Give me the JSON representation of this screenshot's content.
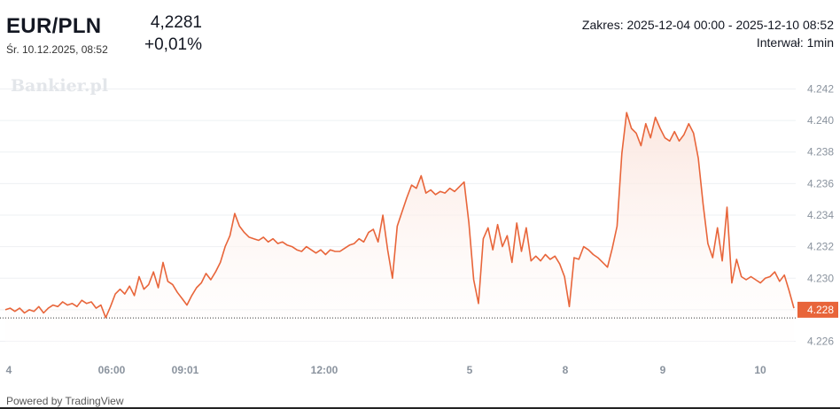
{
  "header": {
    "symbol": "EUR/PLN",
    "date": "Śr. 10.12.2025, 08:52",
    "price": "4,2281",
    "change": "+0,01%",
    "range": "Zakres: 2025-12-04 00:00 - 2025-12-10 08:52",
    "interval": "Interwał: 1min"
  },
  "watermark": "Bankier.pl",
  "footer": "Powered by TradingView",
  "colors": {
    "line": "#e8653a",
    "area_top": "#fbe4dc",
    "price_label_bg": "#e8653a",
    "grid": "#eef0f3",
    "axis_text": "#8a939e"
  },
  "chart_data": {
    "type": "area",
    "title": "EUR/PLN",
    "xlabel": "",
    "ylabel": "",
    "ylim": [
      4.2253,
      4.2427
    ],
    "grid": true,
    "y_ticks": [
      "4.226",
      "4.228",
      "4.230",
      "4.232",
      "4.234",
      "4.236",
      "4.238",
      "4.240",
      "4.242"
    ],
    "x_ticks": [
      "4",
      "06:00",
      "09:01",
      "12:00",
      "5",
      "8",
      "9",
      "10"
    ],
    "last_price_label": "4.228",
    "last_price": 4.2281,
    "series": [
      {
        "values": [
          4.228,
          4.2281,
          4.2279,
          4.2281,
          4.2278,
          4.228,
          4.2279,
          4.2282,
          4.2278,
          4.2281,
          4.2283,
          4.2282,
          4.2285,
          4.2283,
          4.2284,
          4.2282,
          4.2286,
          4.2284,
          4.2285,
          4.2281,
          4.2283,
          4.2275,
          4.2282,
          4.229,
          4.2293,
          4.229,
          4.2295,
          4.2289,
          4.2301,
          4.2293,
          4.2296,
          4.2304,
          4.2294,
          4.231,
          4.2298,
          4.2296,
          4.2291,
          4.2287,
          4.2283,
          4.2289,
          4.2294,
          4.2297,
          4.2303,
          4.2299,
          4.2304,
          4.231,
          4.232,
          4.2327,
          4.2341,
          4.2333,
          4.2329,
          4.2326,
          4.2325,
          4.2324,
          4.2326,
          4.2323,
          4.2325,
          4.2322,
          4.2323,
          4.2321,
          4.232,
          4.2318,
          4.2317,
          4.232,
          4.2318,
          4.2316,
          4.2318,
          4.2315,
          4.2318,
          4.2317,
          4.2317,
          4.2319,
          4.2321,
          4.2322,
          4.2325,
          4.2323,
          4.2329,
          4.2331,
          4.2323,
          4.234,
          4.2318,
          4.23,
          4.2333,
          4.2342,
          4.2351,
          4.2359,
          4.2357,
          4.2365,
          4.2354,
          4.2356,
          4.2353,
          4.2355,
          4.2354,
          4.2357,
          4.2355,
          4.2358,
          4.2361,
          4.2335,
          4.2299,
          4.2284,
          4.2325,
          4.2332,
          4.2318,
          4.2334,
          4.232,
          4.2327,
          4.231,
          4.2335,
          4.2317,
          4.2332,
          4.2311,
          4.2314,
          4.2311,
          4.2315,
          4.2312,
          4.2314,
          4.2309,
          4.2301,
          4.2282,
          4.2313,
          4.2312,
          4.232,
          4.2318,
          4.2315,
          4.2313,
          4.231,
          4.2307,
          4.2319,
          4.2333,
          4.2379,
          4.2405,
          4.2395,
          4.2392,
          4.2384,
          4.2398,
          4.2389,
          4.2402,
          4.2395,
          4.2389,
          4.2387,
          4.2393,
          4.2387,
          4.2391,
          4.2398,
          4.2392,
          4.2376,
          4.2347,
          4.2322,
          4.2313,
          4.2332,
          4.2311,
          4.2345,
          4.2297,
          4.2312,
          4.2301,
          4.2299,
          4.2301,
          4.2299,
          4.2297,
          4.23,
          4.2301,
          4.2304,
          4.2298,
          4.2302,
          4.2292,
          4.2281
        ]
      }
    ]
  }
}
